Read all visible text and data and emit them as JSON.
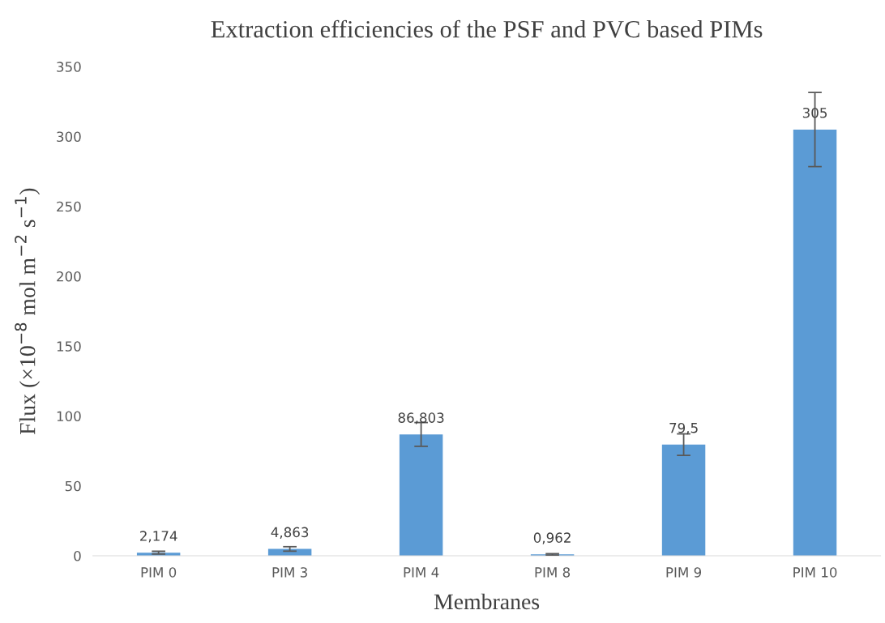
{
  "chart_data": {
    "type": "bar",
    "title": "Extraction efficiencies of the PSF and PVC based PIMs",
    "xlabel": "Membranes",
    "ylabel": "Flux (×10$^{−8}$ mol m$^{−2}$ s$^{−1}$)",
    "categories": [
      "PIM 0",
      "PIM 3",
      "PIM 4",
      "PIM 8",
      "PIM 9",
      "PIM 10"
    ],
    "values": [
      2.174,
      4.863,
      86.803,
      0.962,
      79.5,
      305
    ],
    "errors": [
      1,
      1.6,
      8.5,
      0.5,
      7.7,
      26.5
    ],
    "value_labels": [
      "2,174",
      "4,863",
      "86,803",
      "0,962",
      "79,5",
      "305"
    ],
    "color": "#5b9bd5",
    "ylim": [
      0,
      350
    ],
    "yticks": [
      0,
      50,
      100,
      150,
      200,
      250,
      300,
      350
    ],
    "grid": false
  }
}
